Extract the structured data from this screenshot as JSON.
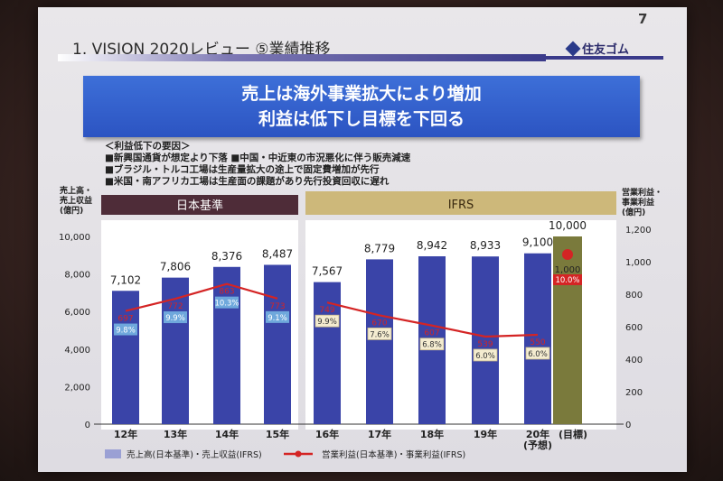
{
  "slide": {
    "page_number": "7",
    "section_title": "1.  VISION 2020レビュー  ⑤業績推移",
    "logo_text": "住友ゴム",
    "logo_icon": "diamond-logo-icon",
    "headline_line1": "売上は海外事業拡大により増加",
    "headline_line2": "利益は低下し目標を下回る",
    "reasons_title": "＜利益低下の要因＞",
    "reasons": [
      "■新興国通貨が想定より下落  ■中国・中近東の市況悪化に伴う販売減速",
      "■ブラジル・トルコ工場は生産量拡大の途上で固定費増加が先行",
      "■米国・南アフリカ工場は生産面の課題があり先行投資回収に遅れ"
    ],
    "colors": {
      "bar": "#3a44a8",
      "target_bar": "#7a7a3c",
      "line": "#d42424",
      "jp_header": "#4e2c38",
      "ifrs_header": "#cdb87a",
      "headline": "#2c54c2"
    }
  },
  "chart_data": {
    "type": "bar",
    "overlay_type": "line",
    "section_labels": [
      "日本基準",
      "IFRS"
    ],
    "left_axis_label": "売上高・\n売上収益\n(億円)",
    "right_axis_label": "営業利益・\n事業利益\n(億円)",
    "left_ylim": [
      0,
      10000
    ],
    "left_ticks": [
      "0",
      "2,000",
      "4,000",
      "6,000",
      "8,000",
      "10,000"
    ],
    "right_ylim": [
      0,
      1200
    ],
    "right_ticks": [
      "0",
      "200",
      "400",
      "600",
      "800",
      "1,000",
      "1,200"
    ],
    "categories": [
      "12年",
      "13年",
      "14年",
      "15年",
      "16年",
      "17年",
      "18年",
      "19年",
      "20年\n(予想)",
      "(目標)"
    ],
    "sales": [
      7102,
      7806,
      8376,
      8487,
      7567,
      8779,
      8942,
      8933,
      9100,
      10000
    ],
    "sales_labels": [
      "7,102",
      "7,806",
      "8,376",
      "8,487",
      "7,567",
      "8,779",
      "8,942",
      "8,933",
      "9,100",
      "10,000"
    ],
    "profit": [
      697,
      772,
      863,
      773,
      749,
      670,
      607,
      539,
      550,
      1000
    ],
    "profit_labels": [
      "697",
      "772",
      "863",
      "773",
      "749",
      "670",
      "607",
      "539",
      "550",
      "1,000"
    ],
    "margin_labels": [
      "9.8%",
      "9.9%",
      "10.3%",
      "9.1%",
      "9.9%",
      "7.6%",
      "6.8%",
      "6.0%",
      "6.0%",
      "10.0%"
    ],
    "legend": [
      "売上高(日本基準)・売上収益(IFRS)",
      "営業利益(日本基準)・事業利益(IFRS)"
    ],
    "grid": false,
    "legend_placement": "bottom"
  }
}
